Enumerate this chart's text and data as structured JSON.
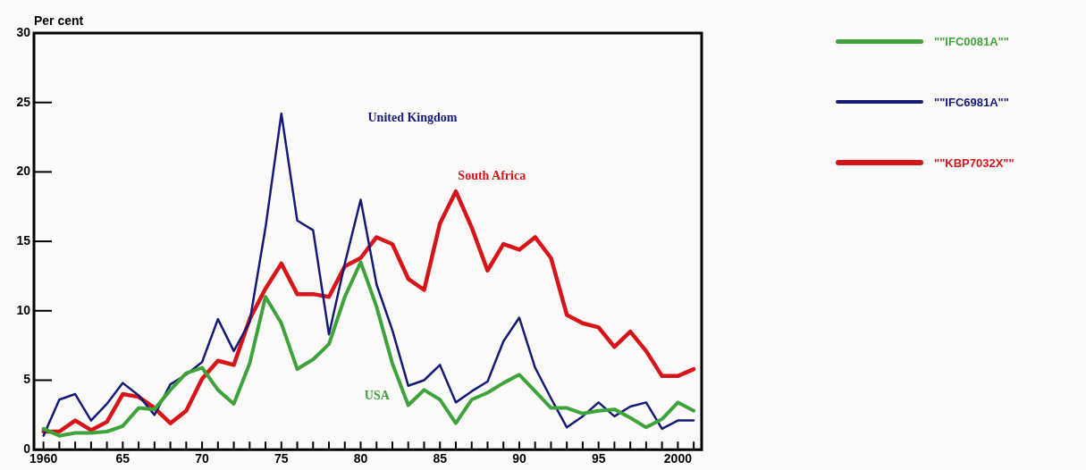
{
  "chart_data": {
    "type": "line",
    "ylabel": "Per cent",
    "x": [
      1960,
      1961,
      1962,
      1963,
      1964,
      1965,
      1966,
      1967,
      1968,
      1969,
      1970,
      1971,
      1972,
      1973,
      1974,
      1975,
      1976,
      1977,
      1978,
      1979,
      1980,
      1981,
      1982,
      1983,
      1984,
      1985,
      1986,
      1987,
      1988,
      1989,
      1990,
      1991,
      1992,
      1993,
      1994,
      1995,
      1996,
      1997,
      1998,
      1999,
      2000,
      2001
    ],
    "series": [
      {
        "name": "\"\"IFC0081A\"\"",
        "color": "#3ea33a",
        "values": [
          1.5,
          1.0,
          1.2,
          1.2,
          1.3,
          1.7,
          3.0,
          2.9,
          4.3,
          5.5,
          5.9,
          4.3,
          3.3,
          6.2,
          11.0,
          9.1,
          5.8,
          6.5,
          7.6,
          11.0,
          13.5,
          10.3,
          6.2,
          3.2,
          4.3,
          3.6,
          1.9,
          3.6,
          4.1,
          4.8,
          5.4,
          4.2,
          3.0,
          3.0,
          2.6,
          2.8,
          2.9,
          2.3,
          1.6,
          2.2,
          3.4,
          2.8
        ]
      },
      {
        "name": "\"\"IFC6981A\"\"",
        "color": "#141a78",
        "values": [
          1.0,
          3.6,
          4.0,
          2.1,
          3.3,
          4.8,
          3.9,
          2.5,
          4.7,
          5.4,
          6.3,
          9.4,
          7.1,
          9.2,
          16.0,
          24.2,
          16.5,
          15.8,
          8.3,
          13.4,
          18.0,
          11.9,
          8.6,
          4.6,
          5.0,
          6.1,
          3.4,
          4.2,
          4.9,
          7.8,
          9.5,
          5.9,
          3.7,
          1.6,
          2.4,
          3.4,
          2.4,
          3.1,
          3.4,
          1.5,
          2.1,
          2.1
        ]
      },
      {
        "name": "\"\"KBP7032X\"\"",
        "color": "#d7141a",
        "values": [
          1.3,
          1.3,
          2.1,
          1.4,
          2.0,
          4.0,
          3.8,
          3.0,
          1.9,
          2.8,
          5.1,
          6.4,
          6.1,
          9.4,
          11.6,
          13.4,
          11.2,
          11.2,
          11.0,
          13.2,
          13.8,
          15.3,
          14.8,
          12.3,
          11.5,
          16.3,
          18.6,
          16.0,
          12.9,
          14.8,
          14.4,
          15.3,
          13.8,
          9.7,
          9.1,
          8.8,
          7.4,
          8.5,
          7.1,
          5.3,
          5.3,
          5.8
        ]
      }
    ],
    "annotations": [
      "USA",
      "United Kingdom",
      "South Africa"
    ],
    "xlim": [
      1959.4,
      2001.5
    ],
    "xticks": [
      {
        "value": 1960,
        "label": "1960"
      },
      {
        "value": 1961,
        "label": null
      },
      {
        "value": 1962,
        "label": null
      },
      {
        "value": 1963,
        "label": null
      },
      {
        "value": 1964,
        "label": null
      },
      {
        "value": 1965,
        "label": "65"
      },
      {
        "value": 1966,
        "label": null
      },
      {
        "value": 1967,
        "label": null
      },
      {
        "value": 1968,
        "label": null
      },
      {
        "value": 1969,
        "label": null
      },
      {
        "value": 1970,
        "label": "70"
      },
      {
        "value": 1971,
        "label": null
      },
      {
        "value": 1972,
        "label": null
      },
      {
        "value": 1973,
        "label": null
      },
      {
        "value": 1974,
        "label": null
      },
      {
        "value": 1975,
        "label": "75"
      },
      {
        "value": 1976,
        "label": null
      },
      {
        "value": 1977,
        "label": null
      },
      {
        "value": 1978,
        "label": null
      },
      {
        "value": 1979,
        "label": null
      },
      {
        "value": 1980,
        "label": "80"
      },
      {
        "value": 1981,
        "label": null
      },
      {
        "value": 1982,
        "label": null
      },
      {
        "value": 1983,
        "label": null
      },
      {
        "value": 1984,
        "label": null
      },
      {
        "value": 1985,
        "label": "85"
      },
      {
        "value": 1986,
        "label": null
      },
      {
        "value": 1987,
        "label": null
      },
      {
        "value": 1988,
        "label": null
      },
      {
        "value": 1989,
        "label": null
      },
      {
        "value": 1990,
        "label": "90"
      },
      {
        "value": 1991,
        "label": null
      },
      {
        "value": 1992,
        "label": null
      },
      {
        "value": 1993,
        "label": null
      },
      {
        "value": 1994,
        "label": null
      },
      {
        "value": 1995,
        "label": "95"
      },
      {
        "value": 1996,
        "label": null
      },
      {
        "value": 1997,
        "label": null
      },
      {
        "value": 1998,
        "label": null
      },
      {
        "value": 1999,
        "label": null
      },
      {
        "value": 2000,
        "label": "2000"
      },
      {
        "value": 2001,
        "label": null
      }
    ],
    "ylim": [
      0,
      30
    ],
    "yticks": [
      0,
      5,
      10,
      15,
      20,
      25,
      30
    ],
    "grid": false,
    "legend": "right",
    "marker": "none",
    "line_style": "solid"
  }
}
